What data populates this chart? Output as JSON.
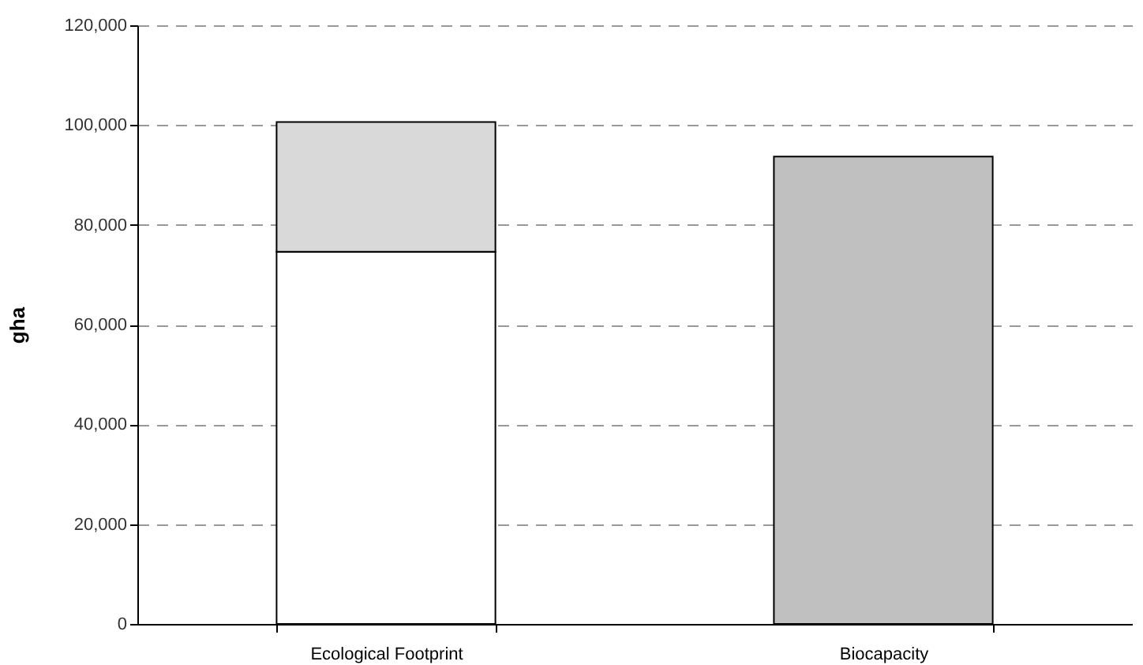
{
  "chart_data": {
    "type": "bar",
    "ylabel": "gha",
    "categories": [
      "Ecological Footprint",
      "Biocapacity"
    ],
    "stacked": true,
    "series": [
      {
        "color": "#ffffff",
        "values": [
          74600,
          null
        ]
      },
      {
        "color": "#d9d9d9",
        "values": [
          26000,
          null
        ]
      },
      {
        "color": "#c0c0c0",
        "values": [
          null,
          93700
        ]
      }
    ],
    "ylim": [
      0,
      120000
    ],
    "yticks": [
      0,
      {
        "value": 20000,
        "label": "20,000"
      },
      {
        "value": 40000,
        "label": "40,000"
      },
      {
        "value": 60000,
        "label": "60,000"
      },
      {
        "value": 80000,
        "label": "80,000"
      },
      {
        "value": 100000,
        "label": "100,000"
      },
      {
        "value": 120000,
        "label": "120,000"
      }
    ],
    "grid": "y"
  }
}
